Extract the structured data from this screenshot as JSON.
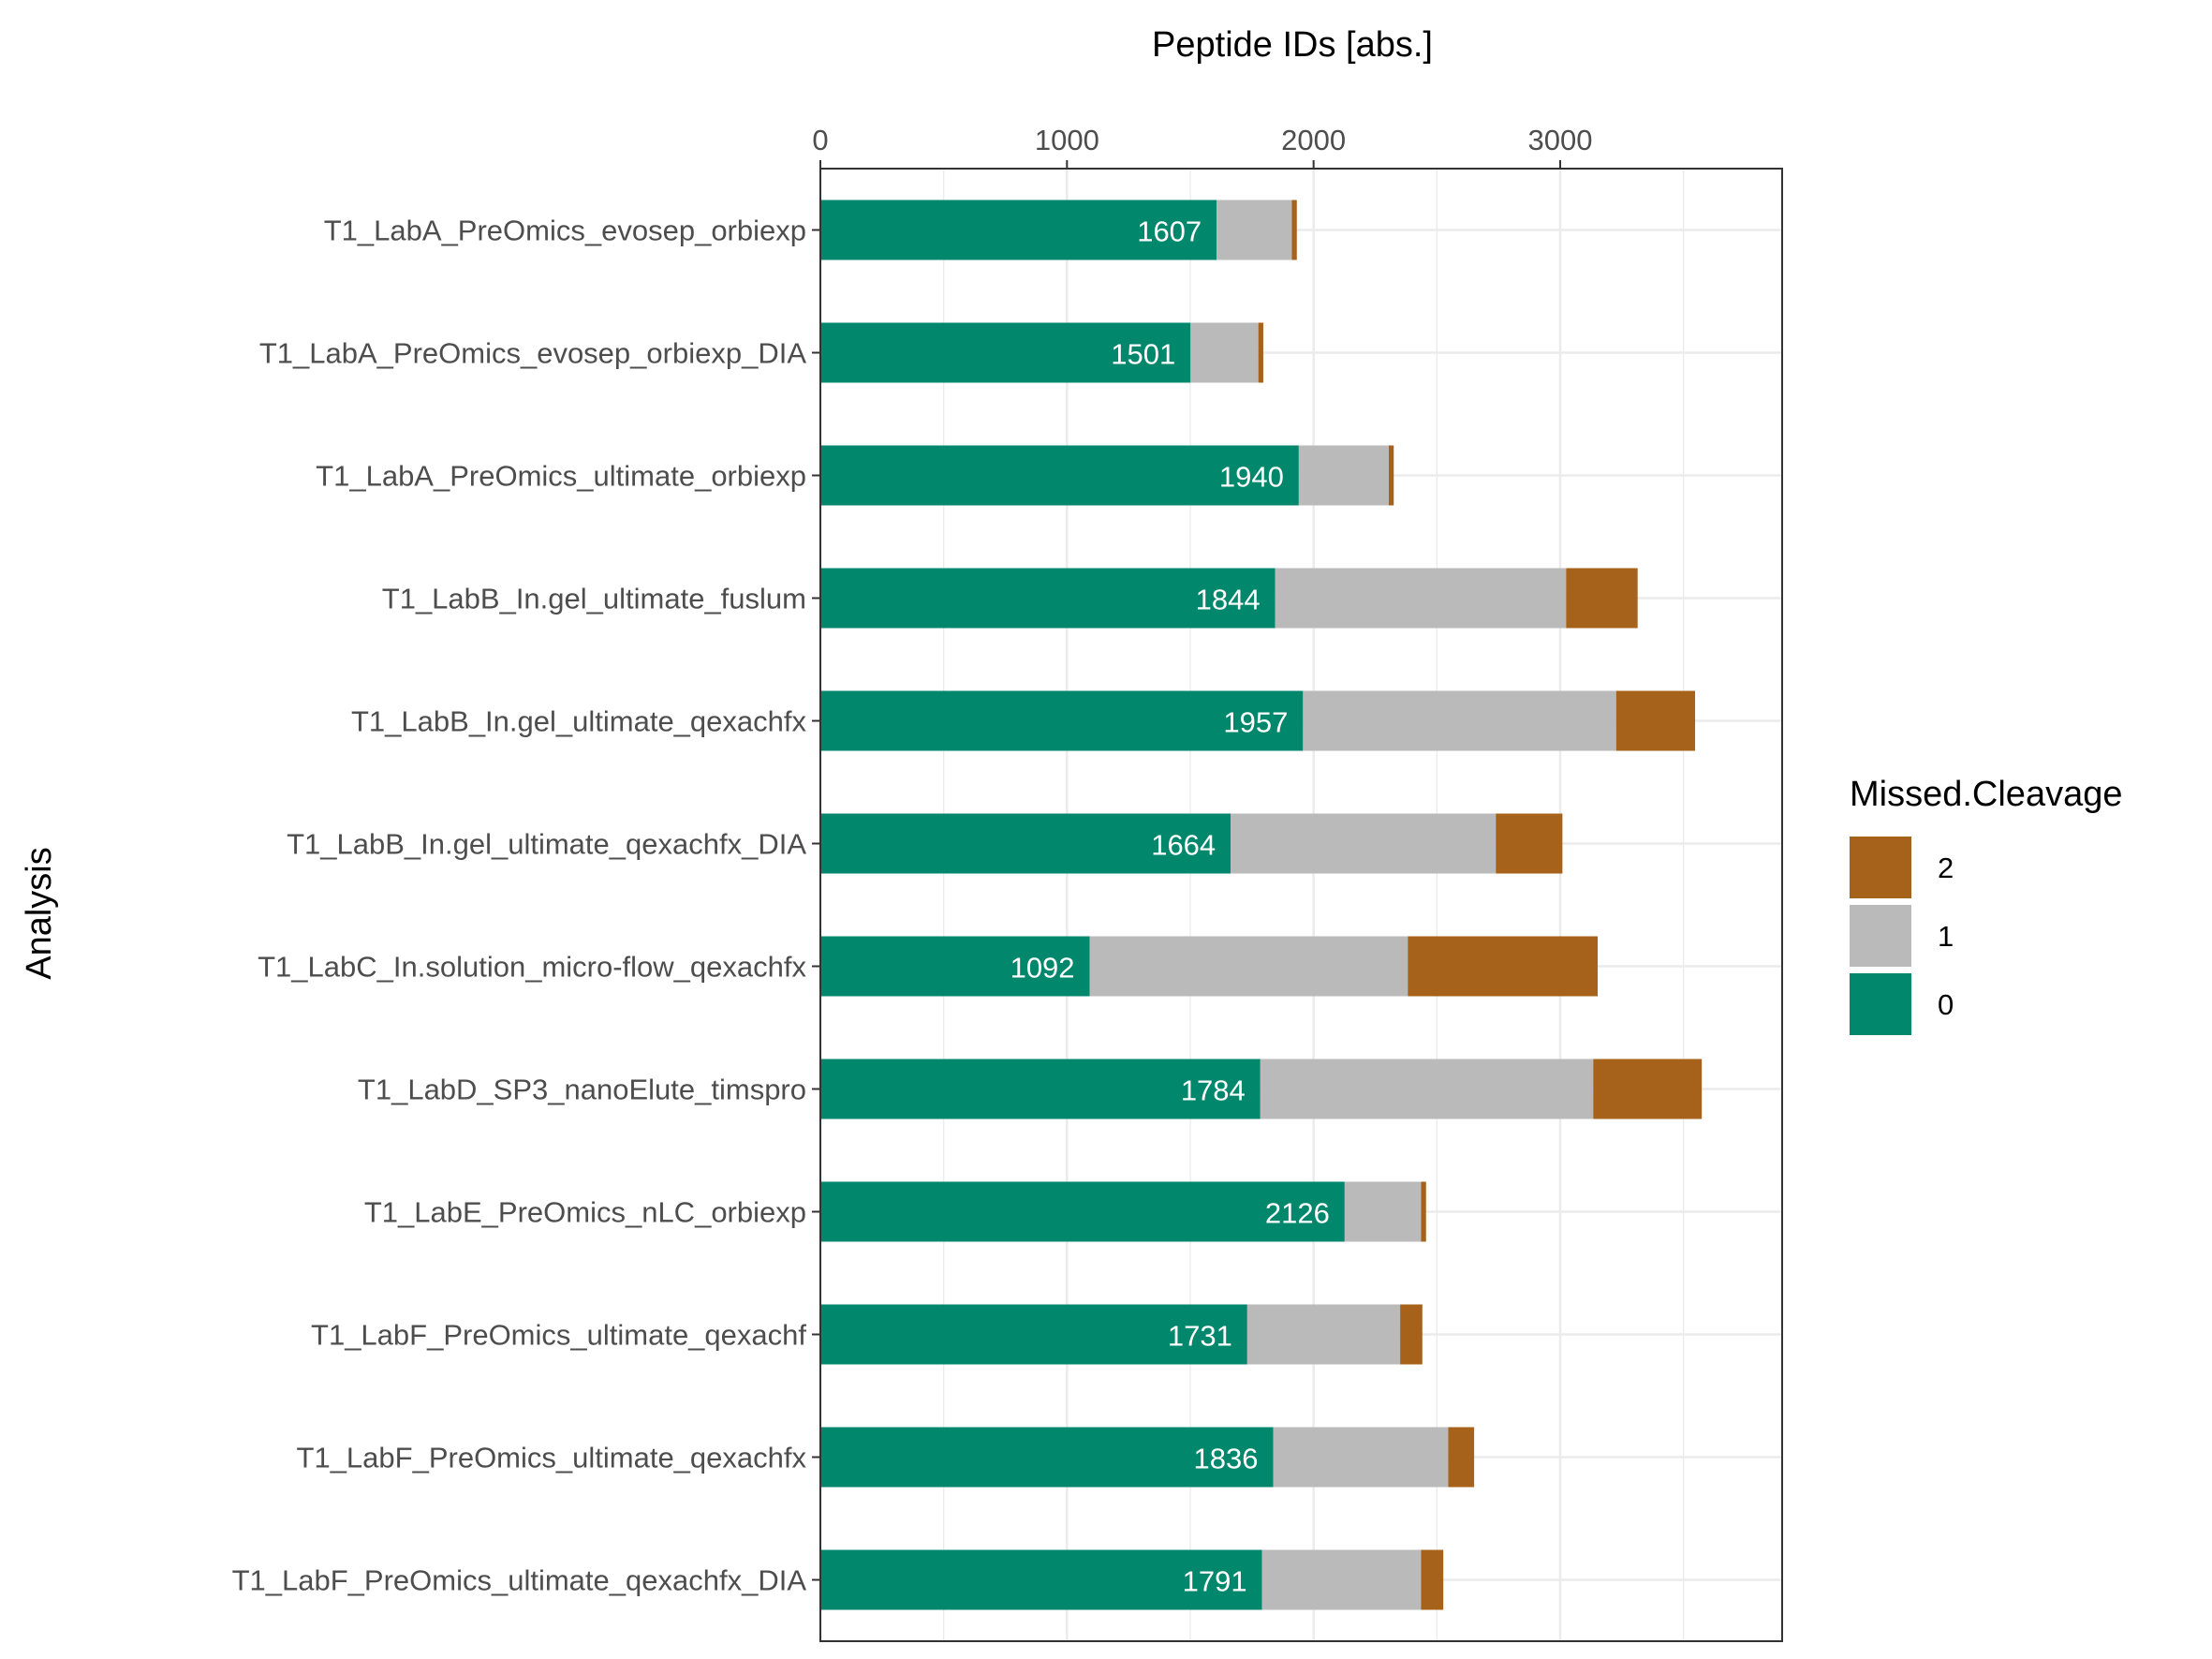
{
  "chart_data": {
    "type": "bar",
    "orientation": "horizontal",
    "stacked": true,
    "xlabel": "Peptide IDs [abs.]",
    "ylabel": "Analysis",
    "xlim": [
      0,
      3900
    ],
    "x_ticks": [
      0,
      1000,
      2000,
      3000
    ],
    "x_axis_position": "top",
    "grid": true,
    "categories": [
      "T1_LabA_PreOmics_evosep_orbiexp",
      "T1_LabA_PreOmics_evosep_orbiexp_DIA",
      "T1_LabA_PreOmics_ultimate_orbiexp",
      "T1_LabB_In.gel_ultimate_fuslum",
      "T1_LabB_In.gel_ultimate_qexachfx",
      "T1_LabB_In.gel_ultimate_qexachfx_DIA",
      "T1_LabC_In.solution_micro-flow_qexachfx",
      "T1_LabD_SP3_nanoElute_timspro",
      "T1_LabE_PreOmics_nLC_orbiexp",
      "T1_LabF_PreOmics_ultimate_qexachf",
      "T1_LabF_PreOmics_ultimate_qexachfx",
      "T1_LabF_PreOmics_ultimate_qexachfx_DIA"
    ],
    "series": [
      {
        "name": "0",
        "color": "#00876C",
        "values": [
          1607,
          1501,
          1940,
          1844,
          1957,
          1664,
          1092,
          1784,
          2126,
          1731,
          1836,
          1791
        ]
      },
      {
        "name": "1",
        "color": "#BBBABA",
        "values": [
          305,
          275,
          365,
          1180,
          1270,
          1075,
          1290,
          1350,
          310,
          620,
          710,
          645
        ]
      },
      {
        "name": "2",
        "color": "#A6611A",
        "values": [
          20,
          20,
          20,
          290,
          320,
          270,
          770,
          440,
          20,
          90,
          105,
          90
        ]
      }
    ],
    "data_labels": [
      "1607",
      "1501",
      "1940",
      "1844",
      "1957",
      "1664",
      "1092",
      "1784",
      "2126",
      "1731",
      "1836",
      "1791"
    ],
    "legend": {
      "title": "Missed.Cleavage",
      "placement": "right",
      "entries": [
        "2",
        "1",
        "0"
      ]
    }
  }
}
